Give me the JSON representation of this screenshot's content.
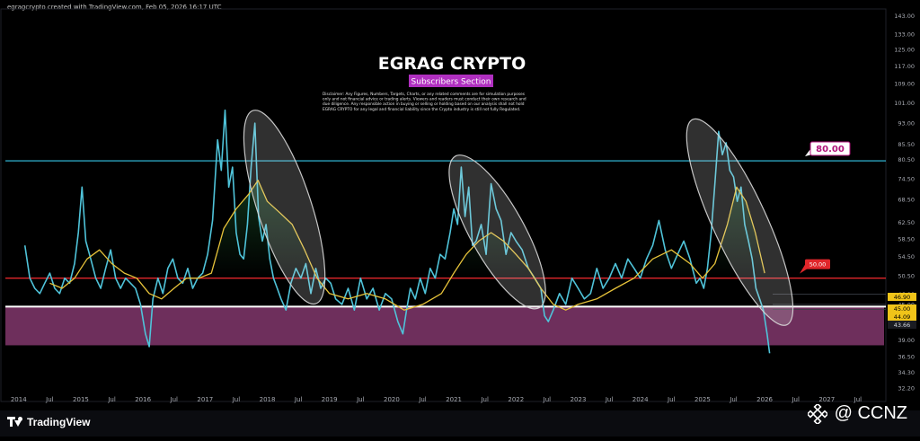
{
  "header": {
    "credit": "egragcrypto created with TradingView.com, Feb 05, 2026 16:17 UTC"
  },
  "overlay": {
    "title": "EGRAG CRYPTO",
    "badge": "Subscribers Section",
    "disclaimer_lines": [
      "Disclaimer: Any Figures, Numbers, Targets, Charts, or any related comments are for simulation purposes",
      "only and not financial advice or trading alerts. Viewers and readers must conduct their own research and",
      "due diligence. Any responsible action in buying or selling or holding based on our analysis shall not hold",
      "EGRAG CRYPTO for any legal and financial liability since the Crypto industry is still not fully Regulated."
    ]
  },
  "footer": {
    "brand": "TradingView",
    "watermark": "@ CCNZ"
  },
  "colors": {
    "background": "#000000",
    "rsi": "#4fc3d9",
    "ma": "#e7c33a",
    "level80": "#35c5e6",
    "level50": "#e0262a",
    "white_line": "#ffffff",
    "zone": "#6e2f5c",
    "label80_bg": "#ffffff",
    "label80_text": "#b0127a",
    "label50_bg": "#e0262a",
    "badge_bg": "#b02fc0",
    "ellipse": "#d9d9d9"
  },
  "icons": {
    "tv": "tradingview-logo-icon",
    "watermark": "binance-diamond-icon"
  },
  "chart_data": {
    "type": "line",
    "title": "",
    "xlabel": "",
    "ylabel": "",
    "y_scale": "log",
    "ylim": [
      30.5,
      147
    ],
    "x_ticks": [
      "2014",
      "Jul",
      "2015",
      "Jul",
      "2016",
      "Jul",
      "2017",
      "Jul",
      "2018",
      "Jul",
      "2019",
      "Jul",
      "2020",
      "Jul",
      "2021",
      "Jul",
      "2022",
      "Jul",
      "2023",
      "Jul",
      "2024",
      "Jul",
      "2025",
      "Jul",
      "2026",
      "Jul",
      "2027",
      "Jul"
    ],
    "y_ticks": [
      "143.00",
      "133.00",
      "125.00",
      "117.00",
      "109.00",
      "101.00",
      "93.00",
      "85.50",
      "80.50",
      "74.50",
      "68.50",
      "62.50",
      "58.50",
      "54.50",
      "50.50",
      "46.90",
      "45.00",
      "44.09",
      "43.66",
      "39.00",
      "36.50",
      "34.30",
      "32.20"
    ],
    "horizontal_levels": [
      {
        "value": 80.0,
        "label": "80.00"
      },
      {
        "value": 50.0,
        "label": "50.00"
      },
      {
        "value": 44.6,
        "label": ""
      }
    ],
    "zone": {
      "from": 38.2,
      "to": 44.6
    },
    "price_labels": [
      "46.90",
      "45.00",
      "44.09",
      "43.66"
    ],
    "x_range": [
      2013.7,
      2027.95
    ],
    "series": [
      {
        "key": "rsi",
        "x": [
          2014.1,
          2014.18,
          2014.26,
          2014.34,
          2014.42,
          2014.5,
          2014.58,
          2014.66,
          2014.74,
          2014.82,
          2014.9,
          2014.96,
          2015.02,
          2015.08,
          2015.16,
          2015.24,
          2015.32,
          2015.4,
          2015.48,
          2015.56,
          2015.64,
          2015.72,
          2015.8,
          2015.88,
          2015.96,
          2016.04,
          2016.1,
          2016.16,
          2016.24,
          2016.32,
          2016.4,
          2016.48,
          2016.56,
          2016.64,
          2016.72,
          2016.8,
          2016.88,
          2016.96,
          2017.04,
          2017.12,
          2017.2,
          2017.26,
          2017.32,
          2017.38,
          2017.44,
          2017.5,
          2017.56,
          2017.62,
          2017.68,
          2017.74,
          2017.8,
          2017.86,
          2017.92,
          2017.98,
          2018.04,
          2018.1,
          2018.16,
          2018.22,
          2018.3,
          2018.38,
          2018.46,
          2018.54,
          2018.62,
          2018.7,
          2018.78,
          2018.86,
          2018.94,
          2019.02,
          2019.1,
          2019.2,
          2019.3,
          2019.4,
          2019.5,
          2019.6,
          2019.7,
          2019.8,
          2019.9,
          2020.0,
          2020.1,
          2020.18,
          2020.24,
          2020.3,
          2020.38,
          2020.46,
          2020.54,
          2020.62,
          2020.7,
          2020.78,
          2020.86,
          2020.94,
          2021.0,
          2021.06,
          2021.12,
          2021.18,
          2021.24,
          2021.3,
          2021.36,
          2021.44,
          2021.52,
          2021.6,
          2021.68,
          2021.76,
          2021.84,
          2021.92,
          2022.0,
          2022.1,
          2022.2,
          2022.3,
          2022.4,
          2022.46,
          2022.52,
          2022.6,
          2022.7,
          2022.8,
          2022.9,
          2023.0,
          2023.1,
          2023.2,
          2023.3,
          2023.4,
          2023.5,
          2023.6,
          2023.7,
          2023.8,
          2023.9,
          2024.0,
          2024.1,
          2024.2,
          2024.3,
          2024.4,
          2024.5,
          2024.6,
          2024.7,
          2024.8,
          2024.9,
          2024.96,
          2025.02,
          2025.08,
          2025.14,
          2025.2,
          2025.26,
          2025.32,
          2025.38,
          2025.44,
          2025.5,
          2025.56,
          2025.62,
          2025.68,
          2025.74,
          2025.8,
          2025.86,
          2025.92,
          2025.98,
          2026.04,
          2026.08
        ],
        "values": [
          57,
          50,
          48,
          47,
          49,
          51,
          48,
          47,
          50,
          49,
          53,
          60,
          72,
          58,
          54,
          50,
          48,
          52,
          56,
          50,
          48,
          50,
          49,
          48,
          45,
          40,
          38,
          46,
          50,
          47,
          52,
          54,
          50,
          49,
          52,
          48,
          50,
          51,
          55,
          63,
          87,
          77,
          98,
          72,
          78,
          60,
          55,
          54,
          62,
          78,
          93,
          64,
          58,
          62,
          54,
          50,
          48,
          46,
          44,
          49,
          52,
          50,
          53,
          47,
          52,
          48,
          50,
          49,
          46,
          45,
          48,
          44,
          50,
          46,
          48,
          44,
          47,
          46,
          42,
          40,
          44,
          48,
          46,
          50,
          47,
          52,
          50,
          55,
          54,
          60,
          66,
          62,
          78,
          64,
          72,
          57,
          58,
          62,
          55,
          73,
          66,
          63,
          55,
          60,
          58,
          56,
          52,
          50,
          48,
          43,
          42,
          44,
          47,
          45,
          50,
          48,
          46,
          47,
          52,
          48,
          50,
          53,
          50,
          54,
          52,
          50,
          54,
          57,
          63,
          56,
          52,
          55,
          58,
          54,
          49,
          50,
          48,
          52,
          60,
          73,
          90,
          82,
          86,
          77,
          75,
          68,
          72,
          62,
          58,
          54,
          48,
          46,
          44,
          40,
          37
        ]
      },
      {
        "key": "ma",
        "x": [
          2014.5,
          2014.7,
          2014.9,
          2015.1,
          2015.3,
          2015.5,
          2015.7,
          2015.9,
          2016.1,
          2016.3,
          2016.5,
          2016.7,
          2016.9,
          2017.1,
          2017.3,
          2017.5,
          2017.7,
          2017.85,
          2018.0,
          2018.2,
          2018.4,
          2018.6,
          2018.8,
          2019.0,
          2019.3,
          2019.6,
          2019.9,
          2020.2,
          2020.5,
          2020.8,
          2021.0,
          2021.2,
          2021.4,
          2021.6,
          2021.8,
          2022.0,
          2022.2,
          2022.4,
          2022.6,
          2022.8,
          2023.0,
          2023.3,
          2023.6,
          2023.9,
          2024.2,
          2024.5,
          2024.8,
          2025.0,
          2025.2,
          2025.4,
          2025.55,
          2025.7,
          2025.85,
          2026.0
        ],
        "values": [
          49,
          48,
          50,
          54,
          56,
          53,
          51,
          50,
          47,
          46,
          48,
          50,
          50,
          51,
          61,
          66,
          70,
          74,
          68,
          65,
          62,
          56,
          50,
          47,
          46,
          47,
          46,
          44,
          45,
          47,
          51,
          55,
          58,
          60,
          58,
          55,
          52,
          48,
          45,
          44,
          45,
          46,
          48,
          50,
          54,
          56,
          53,
          50,
          53,
          62,
          72,
          68,
          60,
          51
        ]
      }
    ]
  }
}
